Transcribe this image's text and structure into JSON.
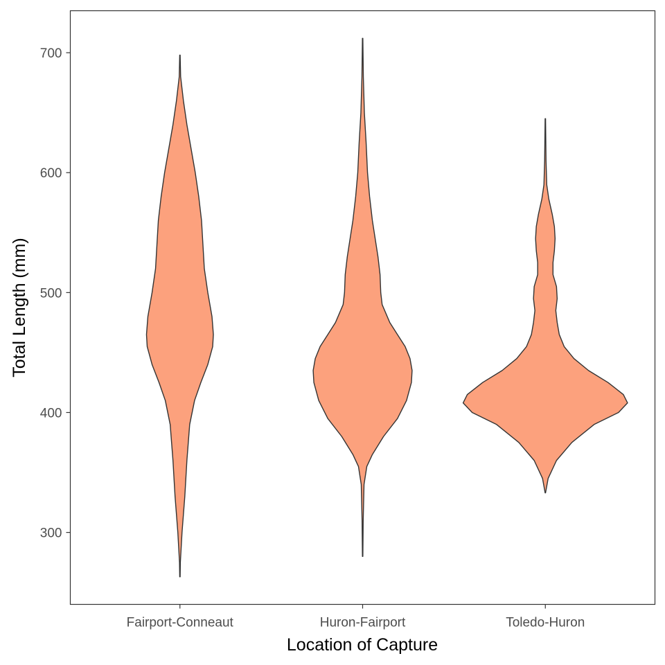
{
  "chart_data": {
    "type": "violin",
    "xlabel": "Location of Capture",
    "ylabel": "Total Length (mm)",
    "categories": [
      "Fairport-Conneaut",
      "Huron-Fairport",
      "Toledo-Huron"
    ],
    "y_ticks": [
      300,
      400,
      500,
      600,
      700
    ],
    "ylim": [
      240,
      735
    ],
    "grid": false,
    "fill_color": "#FCA17D",
    "outline_color": "#333333",
    "violins": [
      {
        "category": "Fairport-Conneaut",
        "min": 263,
        "max": 698,
        "density_profile": [
          [
            263,
            0.3
          ],
          [
            275,
            0.6
          ],
          [
            300,
            3
          ],
          [
            330,
            7
          ],
          [
            360,
            10
          ],
          [
            390,
            14
          ],
          [
            410,
            21
          ],
          [
            425,
            30
          ],
          [
            440,
            40
          ],
          [
            455,
            47
          ],
          [
            465,
            48
          ],
          [
            480,
            46
          ],
          [
            500,
            40
          ],
          [
            520,
            35
          ],
          [
            540,
            33
          ],
          [
            560,
            31
          ],
          [
            580,
            27
          ],
          [
            600,
            22
          ],
          [
            620,
            16
          ],
          [
            640,
            10
          ],
          [
            660,
            5
          ],
          [
            680,
            1
          ],
          [
            698,
            0.3
          ]
        ]
      },
      {
        "category": "Huron-Fairport",
        "min": 280,
        "max": 712,
        "density_profile": [
          [
            280,
            0.3
          ],
          [
            310,
            0.8
          ],
          [
            340,
            2
          ],
          [
            355,
            6
          ],
          [
            365,
            14
          ],
          [
            380,
            30
          ],
          [
            395,
            50
          ],
          [
            410,
            63
          ],
          [
            425,
            70
          ],
          [
            435,
            71
          ],
          [
            445,
            68
          ],
          [
            455,
            61
          ],
          [
            465,
            50
          ],
          [
            475,
            39
          ],
          [
            490,
            28
          ],
          [
            500,
            26
          ],
          [
            515,
            25
          ],
          [
            530,
            22
          ],
          [
            545,
            18
          ],
          [
            560,
            14
          ],
          [
            580,
            10
          ],
          [
            600,
            7
          ],
          [
            625,
            5
          ],
          [
            650,
            2.5
          ],
          [
            680,
            1
          ],
          [
            712,
            0.3
          ]
        ]
      },
      {
        "category": "Toledo-Huron",
        "min": 333,
        "max": 645,
        "density_profile": [
          [
            333,
            0.3
          ],
          [
            345,
            4
          ],
          [
            360,
            16
          ],
          [
            375,
            38
          ],
          [
            390,
            70
          ],
          [
            400,
            105
          ],
          [
            408,
            118
          ],
          [
            415,
            112
          ],
          [
            425,
            90
          ],
          [
            435,
            62
          ],
          [
            445,
            41
          ],
          [
            455,
            27
          ],
          [
            465,
            20
          ],
          [
            475,
            17
          ],
          [
            485,
            15
          ],
          [
            495,
            17
          ],
          [
            505,
            16
          ],
          [
            515,
            11
          ],
          [
            525,
            11
          ],
          [
            535,
            13
          ],
          [
            545,
            14
          ],
          [
            555,
            13
          ],
          [
            565,
            10
          ],
          [
            578,
            5
          ],
          [
            590,
            2
          ],
          [
            610,
            1
          ],
          [
            645,
            0.3
          ]
        ]
      }
    ]
  }
}
